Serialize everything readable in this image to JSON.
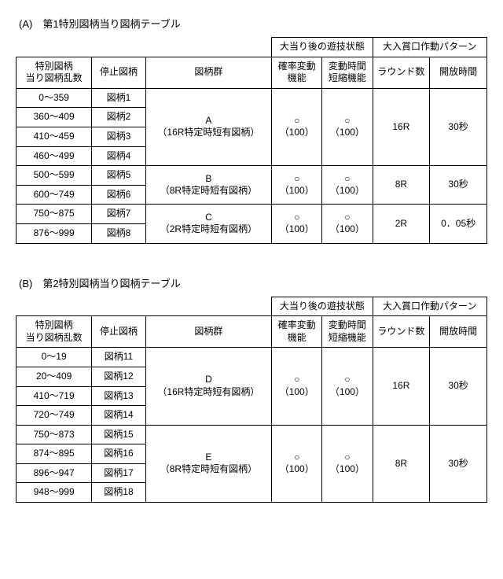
{
  "tableA": {
    "caption": "(A)　第1特別図柄当り図柄テーブル",
    "bigHeader1": "大当り後の遊技状態",
    "bigHeader2": "大入賞口作動パターン",
    "col_rn": "特別図柄\n当り図柄乱数",
    "col_sym": "停止図柄",
    "col_grp": "図柄群",
    "col_pf": "確率変動\n機能",
    "col_tf": "変動時間\n短縮機能",
    "col_rd": "ラウンド数",
    "col_ot": "開放時間",
    "rows": [
      {
        "rn": "0～359",
        "sym": "図柄1"
      },
      {
        "rn": "360～409",
        "sym": "図柄2"
      },
      {
        "rn": "410～459",
        "sym": "図柄3"
      },
      {
        "rn": "460～499",
        "sym": "図柄4"
      },
      {
        "rn": "500～599",
        "sym": "図柄5"
      },
      {
        "rn": "600～749",
        "sym": "図柄6"
      },
      {
        "rn": "750～875",
        "sym": "図柄7"
      },
      {
        "rn": "876～999",
        "sym": "図柄8"
      }
    ],
    "groups": [
      {
        "span": 4,
        "grp": "A\n（16R特定時短有図柄）",
        "pf": "○\n（100）",
        "tf": "○\n（100）",
        "rd": "16R",
        "ot": "30秒"
      },
      {
        "span": 2,
        "grp": "B\n（8R特定時短有図柄）",
        "pf": "○\n（100）",
        "tf": "○\n（100）",
        "rd": "8R",
        "ot": "30秒"
      },
      {
        "span": 2,
        "grp": "C\n（2R特定時短有図柄）",
        "pf": "○\n（100）",
        "tf": "○\n（100）",
        "rd": "2R",
        "ot": "0．05秒"
      }
    ]
  },
  "tableB": {
    "caption": "(B)　第2特別図柄当り図柄テーブル",
    "bigHeader1": "大当り後の遊技状態",
    "bigHeader2": "大入賞口作動パターン",
    "col_rn": "特別図柄\n当り図柄乱数",
    "col_sym": "停止図柄",
    "col_grp": "図柄群",
    "col_pf": "確率変動\n機能",
    "col_tf": "変動時間\n短縮機能",
    "col_rd": "ラウンド数",
    "col_ot": "開放時間",
    "rows": [
      {
        "rn": "0～19",
        "sym": "図柄11"
      },
      {
        "rn": "20～409",
        "sym": "図柄12"
      },
      {
        "rn": "410～719",
        "sym": "図柄13"
      },
      {
        "rn": "720～749",
        "sym": "図柄14"
      },
      {
        "rn": "750～873",
        "sym": "図柄15"
      },
      {
        "rn": "874～895",
        "sym": "図柄16"
      },
      {
        "rn": "896～947",
        "sym": "図柄17"
      },
      {
        "rn": "948～999",
        "sym": "図柄18"
      }
    ],
    "groups": [
      {
        "span": 4,
        "grp": "D\n（16R特定時短有図柄）",
        "pf": "○\n（100）",
        "tf": "○\n（100）",
        "rd": "16R",
        "ot": "30秒"
      },
      {
        "span": 4,
        "grp": "E\n（8R特定時短有図柄）",
        "pf": "○\n（100）",
        "tf": "○\n（100）",
        "rd": "8R",
        "ot": "30秒"
      }
    ]
  }
}
